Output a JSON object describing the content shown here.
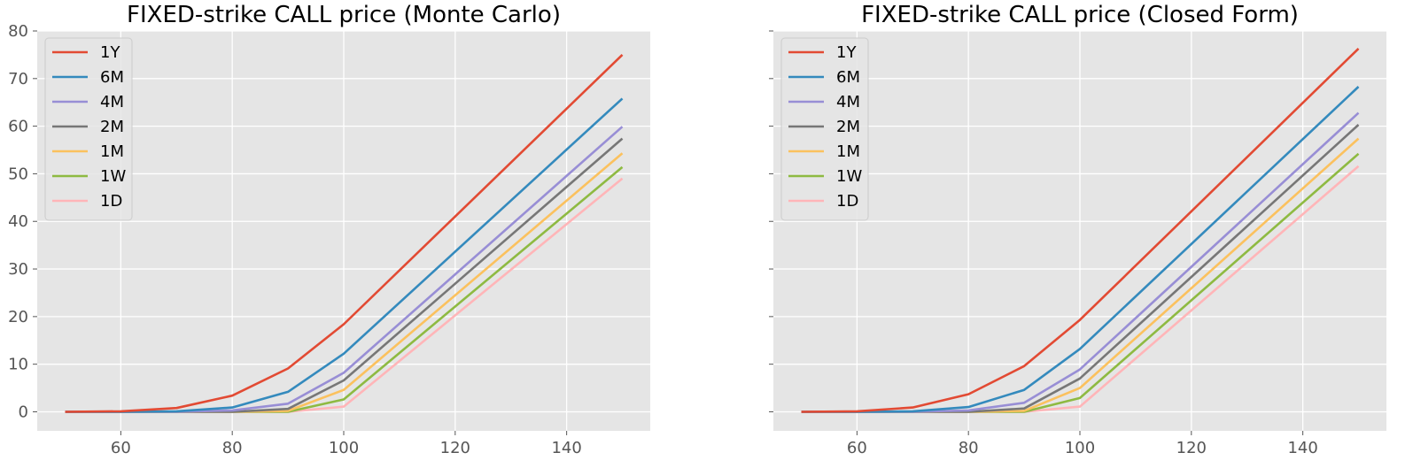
{
  "chart_data": [
    {
      "type": "line",
      "title": "FIXED-strike CALL price (Monte Carlo)",
      "xlabel": "",
      "ylabel": "",
      "x": [
        50,
        60,
        70,
        80,
        90,
        100,
        150
      ],
      "xlim": [
        45,
        155
      ],
      "ylim": [
        -4,
        80
      ],
      "xticks": [
        60,
        80,
        100,
        120,
        140
      ],
      "yticks": [
        0,
        10,
        20,
        30,
        40,
        50,
        60,
        70,
        80
      ],
      "grid": true,
      "legend_position": "upper-left",
      "series": [
        {
          "name": "1Y",
          "color": "#E24A33",
          "values": [
            0.0,
            0.1,
            0.8,
            3.4,
            9.1,
            18.4,
            75.0
          ]
        },
        {
          "name": "6M",
          "color": "#348ABD",
          "values": [
            0.0,
            0.0,
            0.1,
            0.9,
            4.2,
            12.2,
            65.8
          ]
        },
        {
          "name": "4M",
          "color": "#988ED5",
          "values": [
            0.0,
            0.0,
            0.0,
            0.3,
            1.7,
            8.2,
            59.9
          ]
        },
        {
          "name": "2M",
          "color": "#777777",
          "values": [
            0.0,
            0.0,
            0.0,
            0.0,
            0.6,
            6.6,
            57.4
          ]
        },
        {
          "name": "1M",
          "color": "#FBC15E",
          "values": [
            0.0,
            0.0,
            0.0,
            0.0,
            0.2,
            4.6,
            54.3
          ]
        },
        {
          "name": "1W",
          "color": "#8EBA42",
          "values": [
            0.0,
            0.0,
            0.0,
            0.0,
            0.0,
            2.6,
            51.4
          ]
        },
        {
          "name": "1D",
          "color": "#FFB5B8",
          "values": [
            0.0,
            0.0,
            0.0,
            0.0,
            0.0,
            1.1,
            49.0
          ]
        }
      ]
    },
    {
      "type": "line",
      "title": "FIXED-strike CALL price (Closed Form)",
      "xlabel": "",
      "ylabel": "",
      "x": [
        50,
        60,
        70,
        80,
        90,
        100,
        150
      ],
      "xlim": [
        45,
        155
      ],
      "ylim": [
        -4,
        80
      ],
      "xticks": [
        60,
        80,
        100,
        120,
        140
      ],
      "yticks": [],
      "grid": true,
      "legend_position": "upper-left",
      "series": [
        {
          "name": "1Y",
          "color": "#E24A33",
          "values": [
            0.0,
            0.1,
            0.9,
            3.7,
            9.6,
            19.3,
            76.3
          ]
        },
        {
          "name": "6M",
          "color": "#348ABD",
          "values": [
            0.0,
            0.0,
            0.1,
            1.0,
            4.6,
            13.2,
            68.3
          ]
        },
        {
          "name": "4M",
          "color": "#988ED5",
          "values": [
            0.0,
            0.0,
            0.0,
            0.3,
            1.9,
            8.9,
            62.8
          ]
        },
        {
          "name": "2M",
          "color": "#777777",
          "values": [
            0.0,
            0.0,
            0.0,
            0.0,
            0.7,
            7.0,
            60.3
          ]
        },
        {
          "name": "1M",
          "color": "#FBC15E",
          "values": [
            0.0,
            0.0,
            0.0,
            0.0,
            0.2,
            5.0,
            57.4
          ]
        },
        {
          "name": "1W",
          "color": "#8EBA42",
          "values": [
            0.0,
            0.0,
            0.0,
            0.0,
            0.0,
            2.9,
            54.2
          ]
        },
        {
          "name": "1D",
          "color": "#FFB5B8",
          "values": [
            0.0,
            0.0,
            0.0,
            0.0,
            0.0,
            1.1,
            51.6
          ]
        }
      ]
    }
  ]
}
